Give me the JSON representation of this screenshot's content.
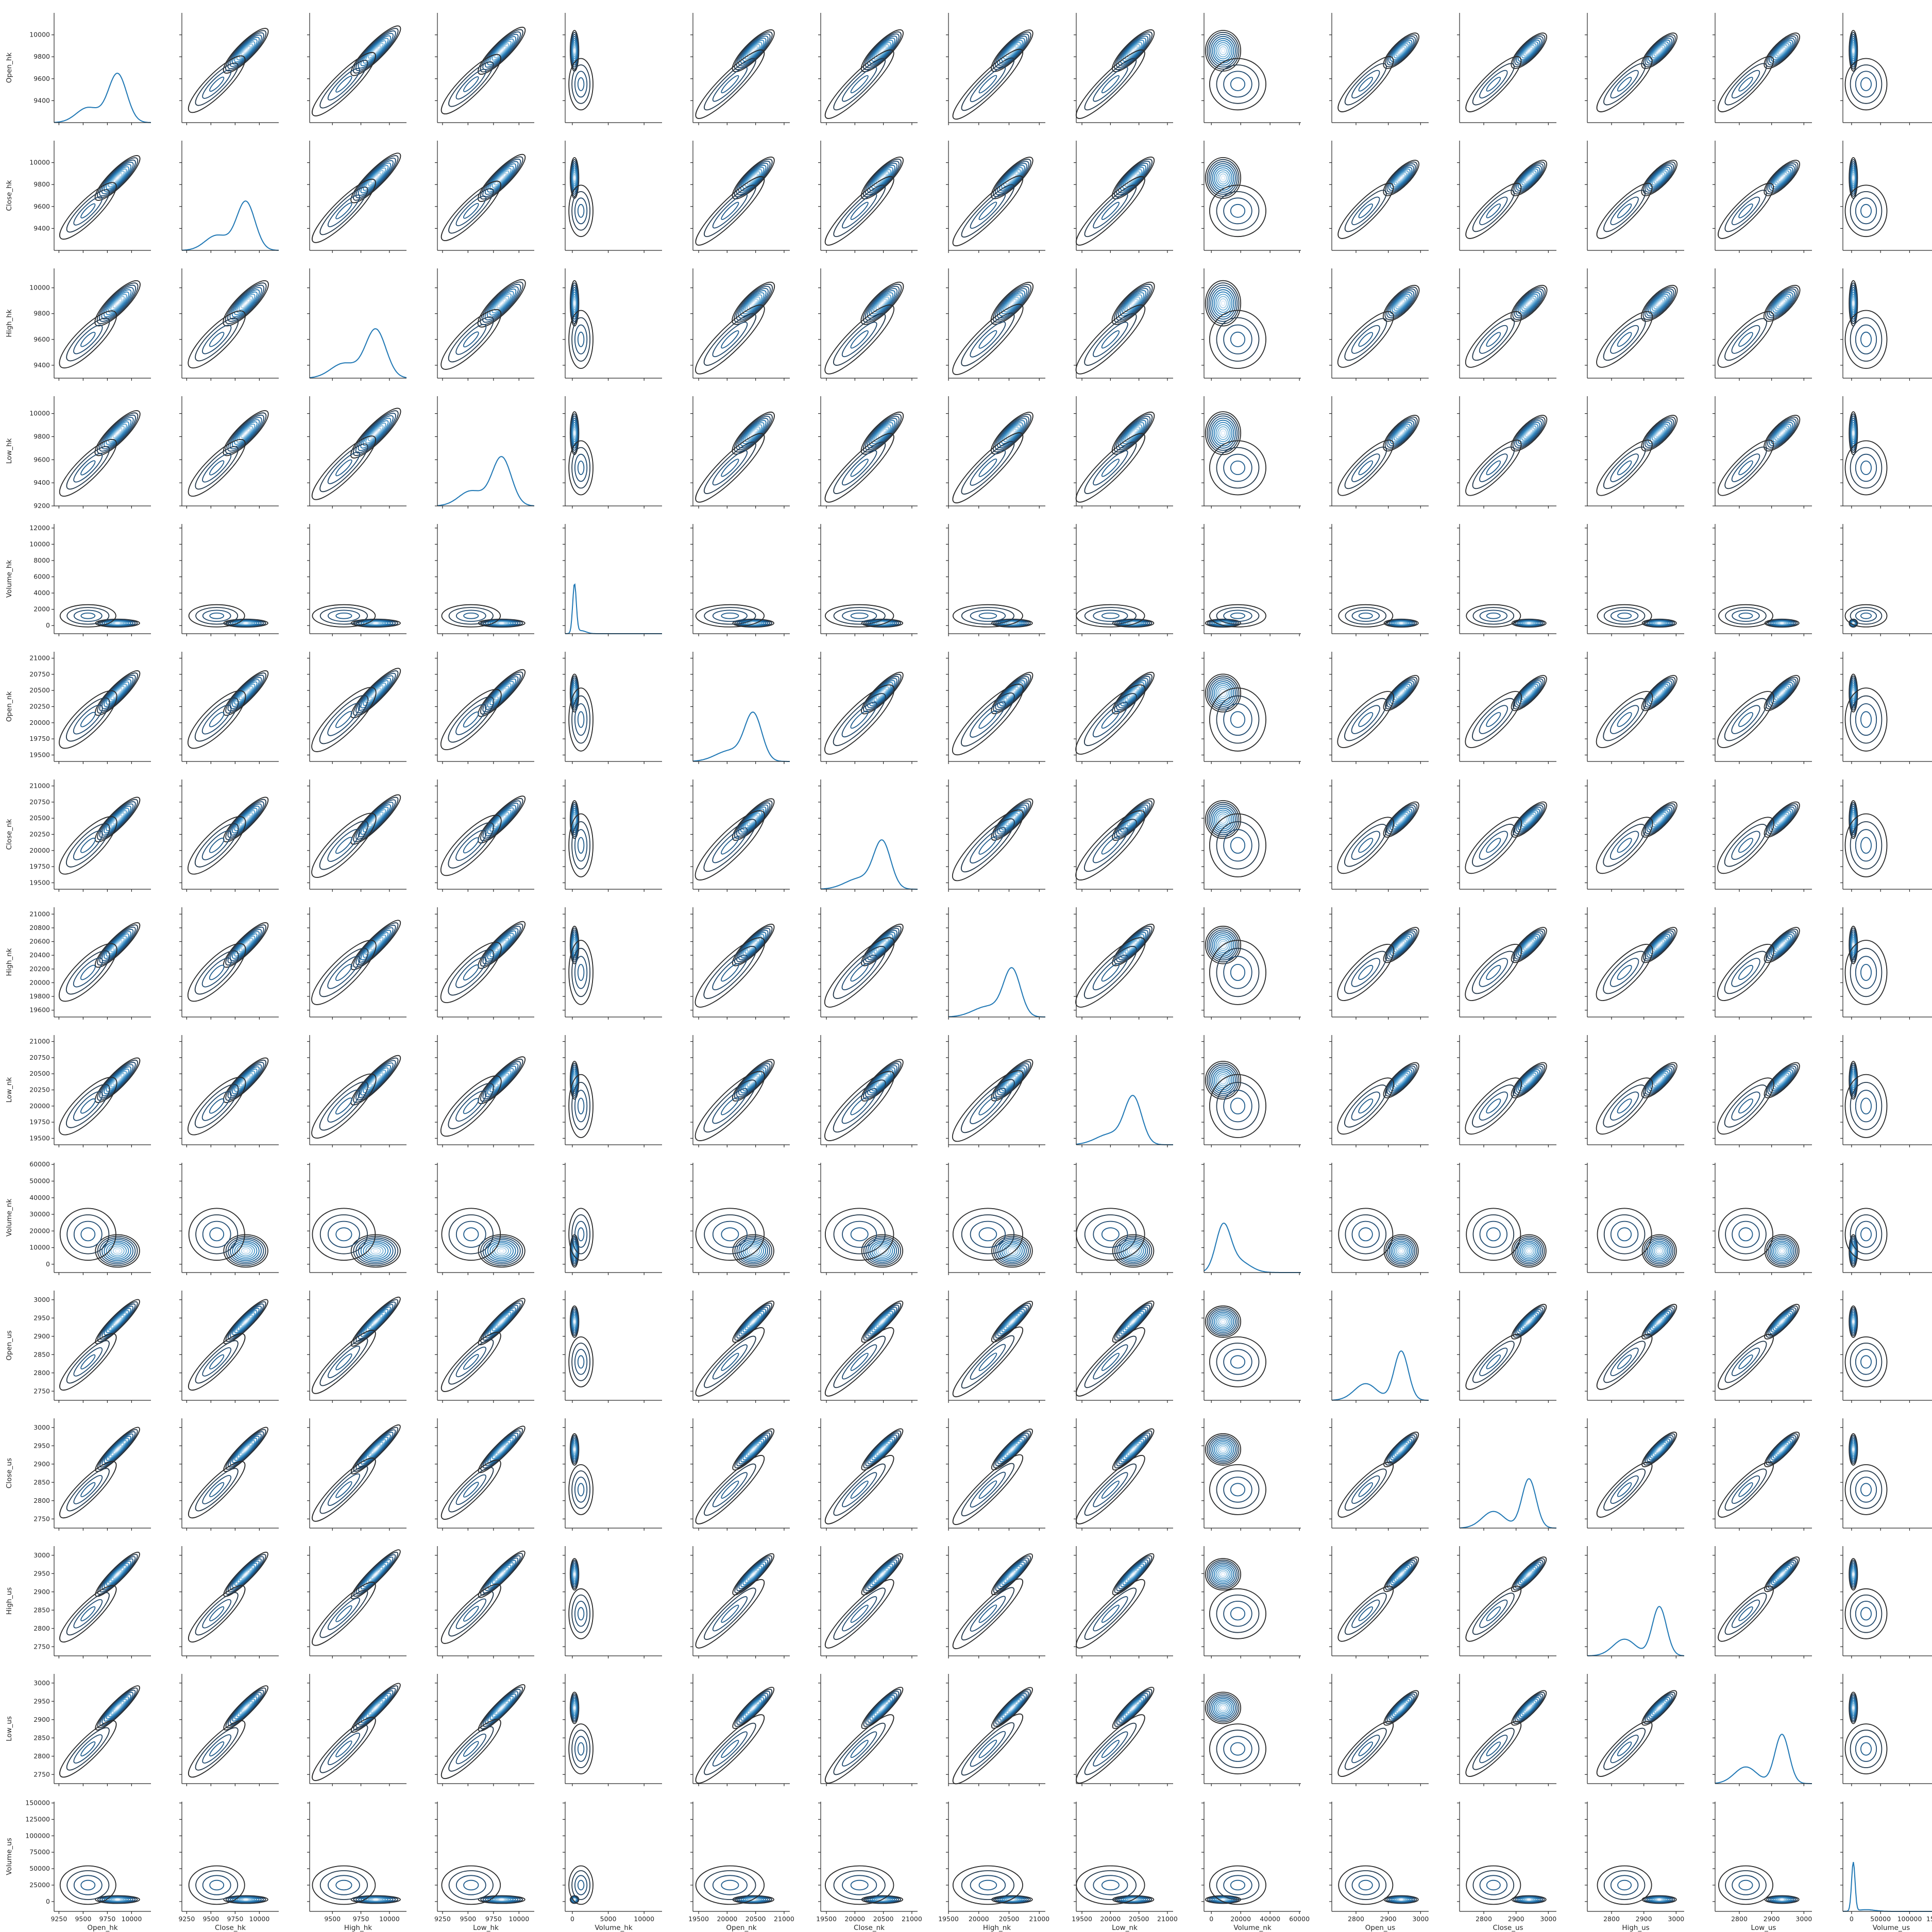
{
  "chart_data": {
    "type": "pairplot",
    "diag_kind": "kde",
    "offdiag_kind": "kde",
    "variables": [
      "Open_hk",
      "Close_hk",
      "High_hk",
      "Low_hk",
      "Volume_hk",
      "Open_nk",
      "Close_nk",
      "High_nk",
      "Low_nk",
      "Volume_nk",
      "Open_us",
      "Close_us",
      "High_us",
      "Low_us",
      "Volume_us"
    ],
    "axes": [
      {
        "name": "Open_hk",
        "range": [
          9200,
          10200
        ],
        "ticks": [
          9400,
          9600,
          9800,
          10000
        ],
        "xticks": [
          9250,
          9500,
          9750,
          10000
        ]
      },
      {
        "name": "Close_hk",
        "range": [
          9200,
          10200
        ],
        "ticks": [
          9400,
          9600,
          9800,
          10000
        ],
        "xticks": [
          9250,
          9500,
          9750,
          10000
        ]
      },
      {
        "name": "High_hk",
        "range": [
          9300,
          10150
        ],
        "ticks": [
          9400,
          9600,
          9800,
          10000
        ],
        "xticks": [
          9500,
          9750,
          10000
        ]
      },
      {
        "name": "Low_hk",
        "range": [
          9200,
          10150
        ],
        "ticks": [
          9200,
          9400,
          9600,
          9800,
          10000
        ],
        "xticks": [
          9250,
          9500,
          9750,
          10000
        ]
      },
      {
        "name": "Volume_hk",
        "range": [
          -1000,
          12500
        ],
        "ticks": [
          0,
          2000,
          4000,
          6000,
          8000,
          10000,
          12000
        ],
        "xticks": [
          0,
          5000,
          10000
        ]
      },
      {
        "name": "Open_nk",
        "range": [
          19400,
          21100
        ],
        "ticks": [
          19500,
          19750,
          20000,
          20250,
          20500,
          20750,
          21000
        ],
        "xticks": [
          19500,
          20000,
          20500,
          21000
        ]
      },
      {
        "name": "Close_nk",
        "range": [
          19400,
          21100
        ],
        "ticks": [
          19500,
          19750,
          20000,
          20250,
          20500,
          20750,
          21000
        ],
        "xticks": [
          19500,
          20000,
          20500,
          21000
        ]
      },
      {
        "name": "High_nk",
        "range": [
          19500,
          21100
        ],
        "ticks": [
          19600,
          19800,
          20000,
          20200,
          20400,
          20600,
          20800,
          21000
        ],
        "xticks": [
          19500,
          20000,
          20500,
          21000
        ]
      },
      {
        "name": "Low_nk",
        "range": [
          19400,
          21100
        ],
        "ticks": [
          19500,
          19750,
          20000,
          20250,
          20500,
          20750,
          21000
        ],
        "xticks": [
          19500,
          20000,
          20500,
          21000
        ]
      },
      {
        "name": "Volume_nk",
        "range": [
          -5000,
          61000
        ],
        "ticks": [
          0,
          10000,
          20000,
          30000,
          40000,
          50000,
          60000
        ],
        "xticks": [
          0,
          20000,
          40000,
          60000
        ]
      },
      {
        "name": "Open_us",
        "range": [
          2725,
          3025
        ],
        "ticks": [
          2750,
          2800,
          2850,
          2900,
          2950,
          3000
        ],
        "xticks": [
          2800,
          2900,
          3000
        ]
      },
      {
        "name": "Close_us",
        "range": [
          2725,
          3025
        ],
        "ticks": [
          2750,
          2800,
          2850,
          2900,
          2950,
          3000
        ],
        "xticks": [
          2800,
          2900,
          3000
        ]
      },
      {
        "name": "High_us",
        "range": [
          2725,
          3025
        ],
        "ticks": [
          2750,
          2800,
          2850,
          2900,
          2950,
          3000
        ],
        "xticks": [
          2800,
          2900,
          3000
        ]
      },
      {
        "name": "Low_us",
        "range": [
          2725,
          3025
        ],
        "ticks": [
          2750,
          2800,
          2850,
          2900,
          2950,
          3000
        ],
        "xticks": [
          2800,
          2900,
          3000
        ]
      },
      {
        "name": "Volume_us",
        "range": [
          -15000,
          152000
        ],
        "ticks": [
          0,
          25000,
          50000,
          75000,
          100000,
          125000,
          150000
        ],
        "xticks": [
          0,
          50000,
          100000,
          150000
        ]
      }
    ],
    "distributions": {
      "Open_hk": [
        {
          "w": 0.72,
          "m": 9855,
          "s": 95
        },
        {
          "w": 0.28,
          "m": 9550,
          "s": 120
        }
      ],
      "Close_hk": [
        {
          "w": 0.72,
          "m": 9860,
          "s": 95
        },
        {
          "w": 0.28,
          "m": 9560,
          "s": 120
        }
      ],
      "High_hk": [
        {
          "w": 0.72,
          "m": 9880,
          "s": 90
        },
        {
          "w": 0.28,
          "m": 9600,
          "s": 115
        }
      ],
      "Low_hk": [
        {
          "w": 0.72,
          "m": 9830,
          "s": 95
        },
        {
          "w": 0.28,
          "m": 9530,
          "s": 120
        }
      ],
      "Volume_hk": [
        {
          "w": 0.85,
          "m": 300,
          "s": 250
        },
        {
          "w": 0.15,
          "m": 1200,
          "s": 700
        }
      ],
      "Open_nk": [
        {
          "w": 0.72,
          "m": 20460,
          "s": 150
        },
        {
          "w": 0.28,
          "m": 20050,
          "s": 250
        }
      ],
      "Close_nk": [
        {
          "w": 0.72,
          "m": 20480,
          "s": 150
        },
        {
          "w": 0.28,
          "m": 20080,
          "s": 250
        }
      ],
      "High_nk": [
        {
          "w": 0.72,
          "m": 20550,
          "s": 140
        },
        {
          "w": 0.28,
          "m": 20150,
          "s": 240
        }
      ],
      "Low_nk": [
        {
          "w": 0.72,
          "m": 20400,
          "s": 150
        },
        {
          "w": 0.28,
          "m": 20000,
          "s": 250
        }
      ],
      "Volume_nk": [
        {
          "w": 0.7,
          "m": 8000,
          "s": 5000
        },
        {
          "w": 0.3,
          "m": 18000,
          "s": 8000
        }
      ],
      "Open_us": [
        {
          "w": 0.65,
          "m": 2940,
          "s": 22
        },
        {
          "w": 0.35,
          "m": 2830,
          "s": 35
        }
      ],
      "Close_us": [
        {
          "w": 0.65,
          "m": 2940,
          "s": 22
        },
        {
          "w": 0.35,
          "m": 2830,
          "s": 35
        }
      ],
      "High_us": [
        {
          "w": 0.65,
          "m": 2948,
          "s": 22
        },
        {
          "w": 0.35,
          "m": 2840,
          "s": 35
        }
      ],
      "Low_us": [
        {
          "w": 0.65,
          "m": 2932,
          "s": 22
        },
        {
          "w": 0.35,
          "m": 2820,
          "s": 35
        }
      ],
      "Volume_us": [
        {
          "w": 0.85,
          "m": 3000,
          "s": 3000
        },
        {
          "w": 0.15,
          "m": 25000,
          "s": 15000
        }
      ]
    },
    "diagonal_color": "#1f77b4",
    "contour_colormap": [
      "#2a2a2a",
      "#1f4e79",
      "#1f77b4",
      "#6baed6",
      "#deebf7"
    ],
    "contour_levels": 10
  }
}
